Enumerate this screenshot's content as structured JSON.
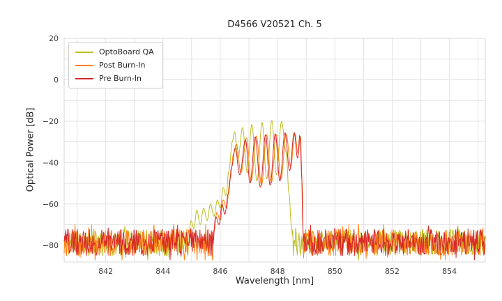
{
  "chart_data": {
    "type": "line",
    "title": "D4566 V20521 Ch. 5",
    "xlabel": "Wavelength [nm]",
    "ylabel": "Optical Power [dB]",
    "xlim": [
      840.55,
      855.25
    ],
    "ylim": [
      -88,
      20
    ],
    "xticks": {
      "values": [
        842,
        844,
        846,
        848,
        850,
        852,
        854
      ],
      "labels": [
        "842",
        "844",
        "846",
        "848",
        "850",
        "852",
        "854"
      ]
    },
    "yticks": {
      "values": [
        20,
        0,
        -20,
        -40,
        -60,
        -80
      ],
      "labels": [
        "20",
        "0",
        "−20",
        "−40",
        "−60",
        "−80"
      ]
    },
    "grid": {
      "x_step": 1,
      "y_step": 10,
      "color": "#e3e3e3"
    },
    "legend_position": "upper left",
    "sample_step": 0.02,
    "noise_floor": {
      "mean": -78.5,
      "spread": 13,
      "min": -87,
      "max": -70
    },
    "series": [
      {
        "name": "OptoBoard QA",
        "color": "#bcbd22",
        "seed": 11,
        "envelope": [
          [
            844.88,
            -80
          ],
          [
            844.98,
            -68
          ],
          [
            845.08,
            -72
          ],
          [
            845.18,
            -63
          ],
          [
            845.3,
            -70
          ],
          [
            845.42,
            -62
          ],
          [
            845.54,
            -68
          ],
          [
            845.66,
            -60
          ],
          [
            845.78,
            -66
          ],
          [
            845.9,
            -58
          ],
          [
            846.0,
            -62
          ],
          [
            846.1,
            -52
          ],
          [
            846.2,
            -56
          ],
          [
            846.3,
            -44
          ],
          [
            846.42,
            -30
          ],
          [
            846.5,
            -25
          ],
          [
            846.62,
            -38
          ],
          [
            846.78,
            -23
          ],
          [
            846.94,
            -45
          ],
          [
            847.1,
            -21.5
          ],
          [
            847.28,
            -49
          ],
          [
            847.46,
            -20.5
          ],
          [
            847.62,
            -48
          ],
          [
            847.8,
            -19.5
          ],
          [
            847.96,
            -46
          ],
          [
            848.14,
            -20
          ],
          [
            848.3,
            -35
          ],
          [
            848.4,
            -55
          ],
          [
            848.48,
            -70
          ],
          [
            848.54,
            -80
          ]
        ]
      },
      {
        "name": "Post Burn-In",
        "color": "#ff7f0e",
        "seed": 23,
        "envelope": [
          [
            845.74,
            -80
          ],
          [
            845.88,
            -64
          ],
          [
            846.0,
            -68
          ],
          [
            846.1,
            -58
          ],
          [
            846.22,
            -62
          ],
          [
            846.34,
            -48
          ],
          [
            846.46,
            -36
          ],
          [
            846.56,
            -31
          ],
          [
            846.72,
            -45
          ],
          [
            846.92,
            -28
          ],
          [
            847.08,
            -49
          ],
          [
            847.26,
            -27
          ],
          [
            847.44,
            -51
          ],
          [
            847.62,
            -26.5
          ],
          [
            847.78,
            -50
          ],
          [
            847.96,
            -26.5
          ],
          [
            848.12,
            -48
          ],
          [
            848.3,
            -26
          ],
          [
            848.46,
            -42
          ],
          [
            848.6,
            -26
          ],
          [
            848.72,
            -36
          ],
          [
            848.8,
            -27
          ],
          [
            848.86,
            -50
          ],
          [
            848.9,
            -80
          ]
        ]
      },
      {
        "name": "Pre Burn-In",
        "color": "#d62728",
        "seed": 37,
        "envelope": [
          [
            845.72,
            -83
          ],
          [
            845.84,
            -66
          ],
          [
            845.96,
            -70
          ],
          [
            846.06,
            -60
          ],
          [
            846.16,
            -65
          ],
          [
            846.28,
            -55
          ],
          [
            846.4,
            -42
          ],
          [
            846.52,
            -33
          ],
          [
            846.68,
            -46
          ],
          [
            846.88,
            -29
          ],
          [
            847.04,
            -50
          ],
          [
            847.22,
            -27.5
          ],
          [
            847.4,
            -52
          ],
          [
            847.58,
            -26.5
          ],
          [
            847.74,
            -51
          ],
          [
            847.92,
            -26
          ],
          [
            848.08,
            -49
          ],
          [
            848.26,
            -25.5
          ],
          [
            848.42,
            -44
          ],
          [
            848.58,
            -25.5
          ],
          [
            848.7,
            -38
          ],
          [
            848.78,
            -26.5
          ],
          [
            848.84,
            -45
          ],
          [
            848.88,
            -70
          ],
          [
            848.9,
            -83
          ]
        ]
      }
    ]
  }
}
